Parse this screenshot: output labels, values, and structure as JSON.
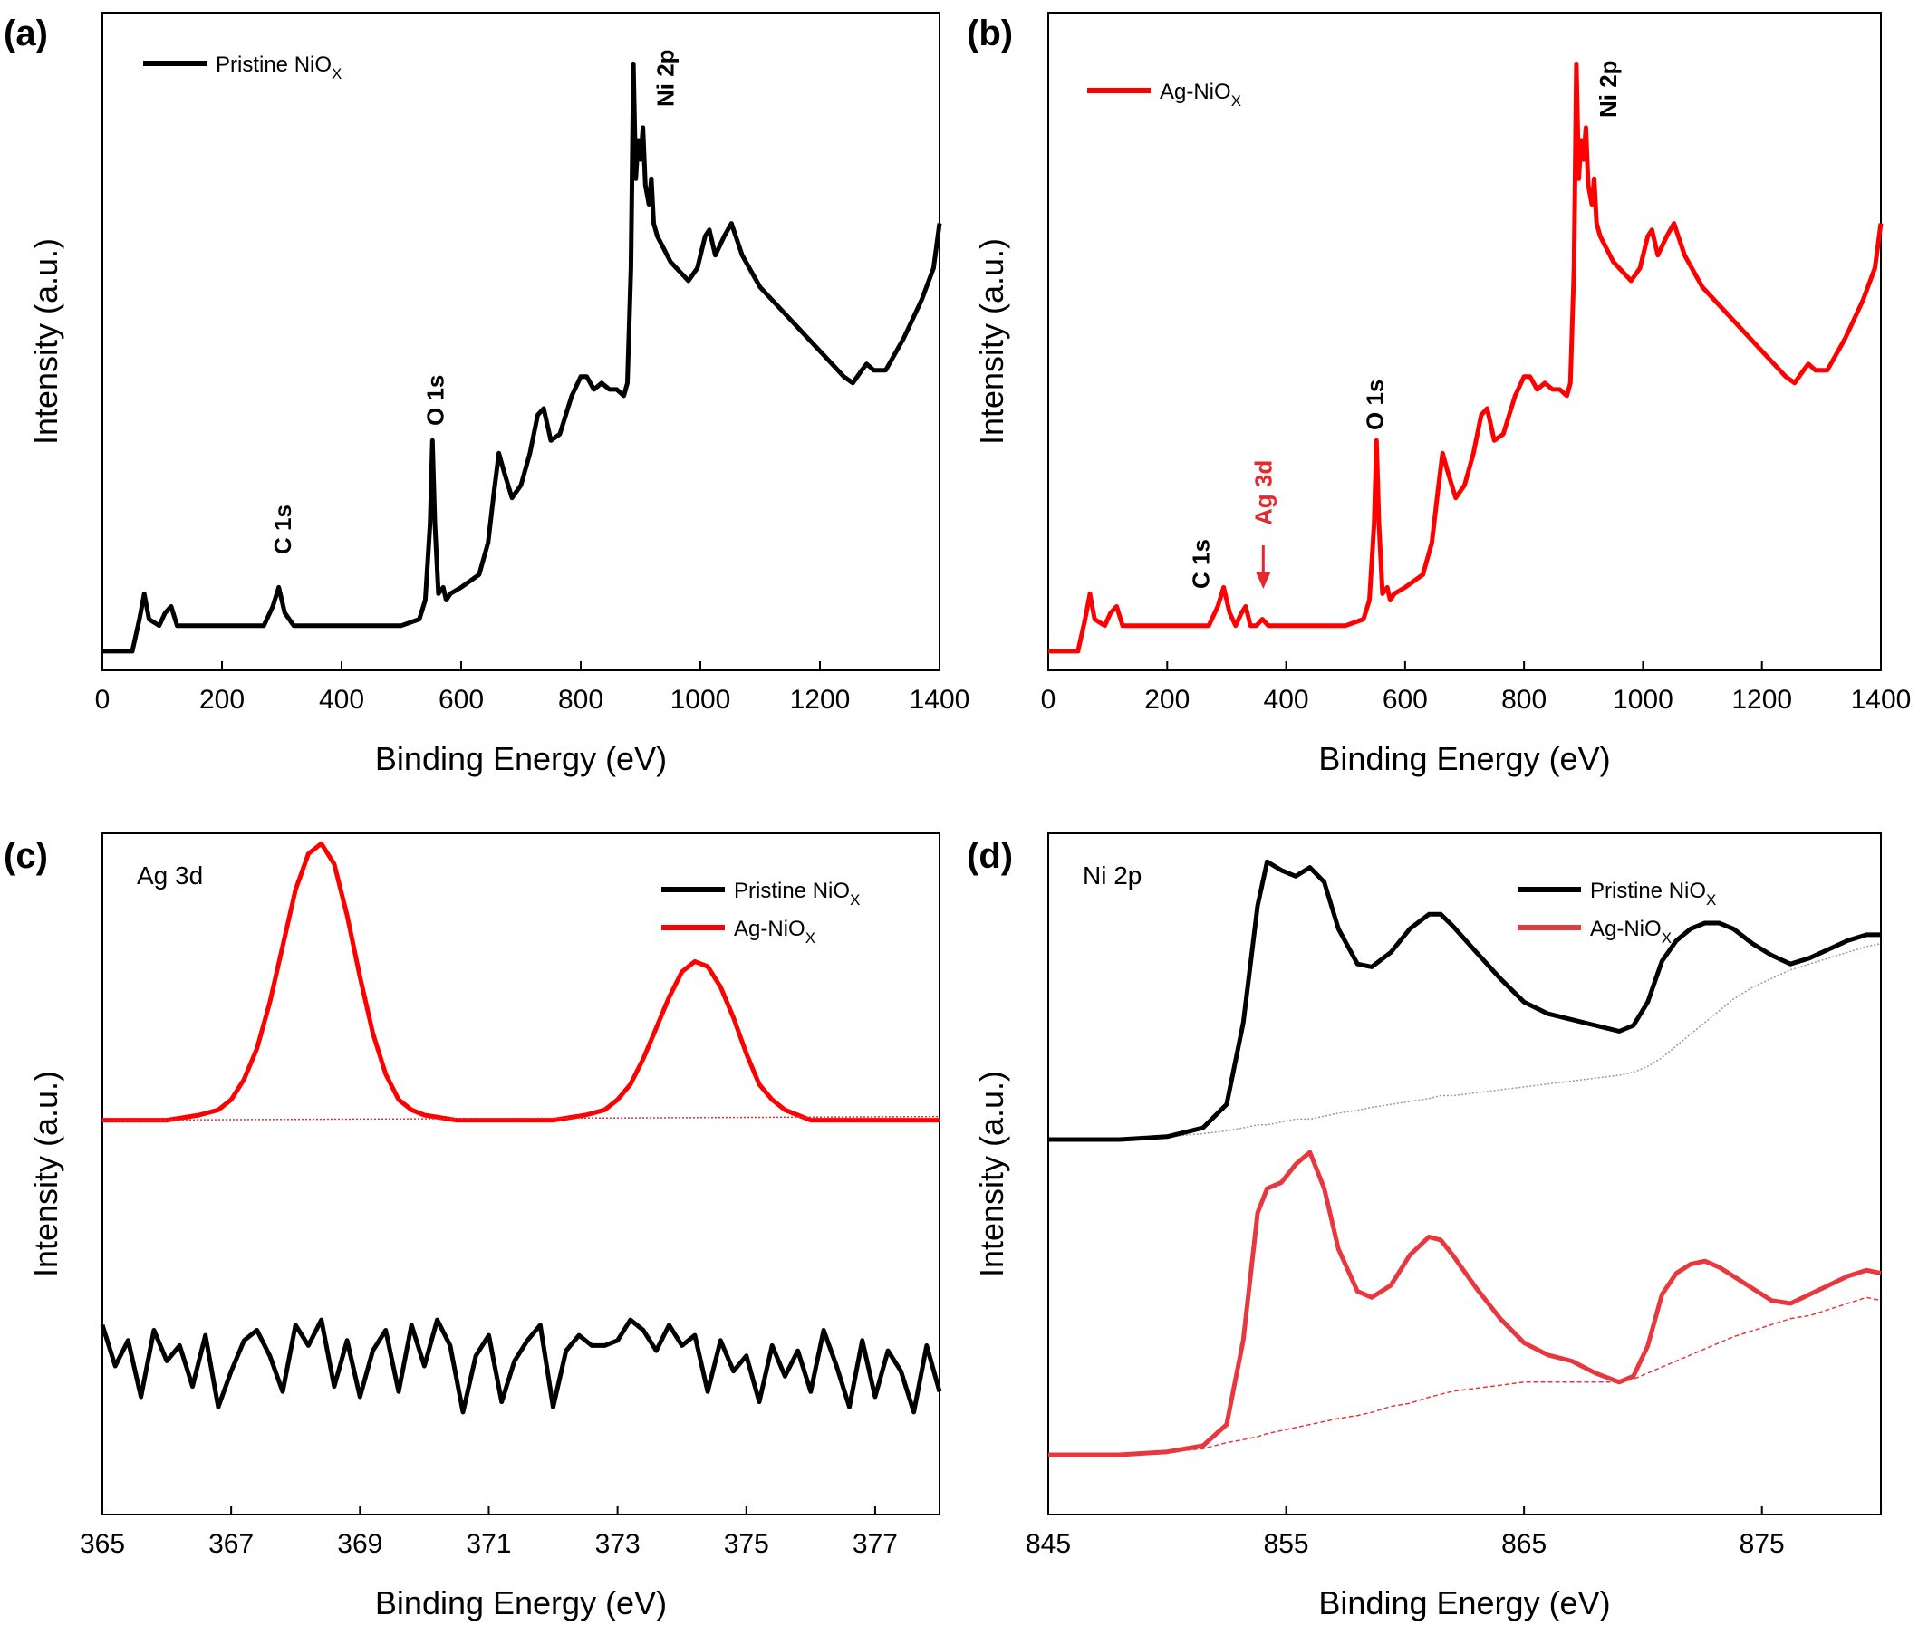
{
  "chart_data": [
    {
      "panel": "(a)",
      "type": "line",
      "xlabel": "Binding Energy (eV)",
      "ylabel": "Intensity (a.u.)",
      "xlim": [
        0,
        1400
      ],
      "xticks": [
        0,
        200,
        400,
        600,
        800,
        1000,
        1200,
        1400
      ],
      "legend": "top-left",
      "grid": false,
      "series": [
        {
          "name": "Pristine NiO",
          "name_subscript": "X",
          "color": "#000000",
          "x": [
            0,
            50,
            62,
            70,
            78,
            95,
            105,
            115,
            125,
            140,
            200,
            270,
            285,
            295,
            305,
            320,
            400,
            500,
            530,
            540,
            548,
            552,
            556,
            562,
            570,
            575,
            582,
            600,
            630,
            645,
            655,
            663,
            672,
            685,
            700,
            715,
            728,
            738,
            750,
            765,
            785,
            800,
            810,
            822,
            835,
            848,
            860,
            872,
            878,
            884,
            888,
            892,
            896,
            900,
            904,
            908,
            914,
            918,
            922,
            928,
            950,
            980,
            995,
            1008,
            1015,
            1025,
            1040,
            1052,
            1070,
            1100,
            1150,
            1200,
            1240,
            1255,
            1270,
            1278,
            1290,
            1310,
            1340,
            1370,
            1390,
            1400
          ],
          "y": [
            0.0,
            0.0,
            0.05,
            0.09,
            0.05,
            0.04,
            0.06,
            0.07,
            0.04,
            0.04,
            0.04,
            0.04,
            0.07,
            0.1,
            0.06,
            0.04,
            0.04,
            0.04,
            0.05,
            0.08,
            0.2,
            0.33,
            0.2,
            0.09,
            0.1,
            0.08,
            0.09,
            0.1,
            0.12,
            0.17,
            0.25,
            0.31,
            0.28,
            0.24,
            0.26,
            0.31,
            0.37,
            0.38,
            0.33,
            0.34,
            0.4,
            0.43,
            0.43,
            0.41,
            0.42,
            0.41,
            0.41,
            0.4,
            0.42,
            0.6,
            0.92,
            0.74,
            0.8,
            0.77,
            0.82,
            0.73,
            0.7,
            0.74,
            0.67,
            0.65,
            0.61,
            0.58,
            0.6,
            0.65,
            0.66,
            0.62,
            0.65,
            0.67,
            0.62,
            0.57,
            0.52,
            0.47,
            0.43,
            0.42,
            0.44,
            0.45,
            0.44,
            0.44,
            0.49,
            0.55,
            0.6,
            0.67
          ]
        }
      ],
      "annotations": [
        {
          "text": "C 1s",
          "x": 300
        },
        {
          "text": "O 1s",
          "x": 555
        },
        {
          "text": "Ni 2p",
          "x": 940
        }
      ]
    },
    {
      "panel": "(b)",
      "type": "line",
      "xlabel": "Binding Energy (eV)",
      "ylabel": "Intensity (a.u.)",
      "xlim": [
        0,
        1400
      ],
      "xticks": [
        0,
        200,
        400,
        600,
        800,
        1000,
        1200,
        1400
      ],
      "legend": "top-left",
      "grid": false,
      "series": [
        {
          "name": "Ag-NiO",
          "name_subscript": "X",
          "color": "#ff0000",
          "x": [
            0,
            50,
            62,
            70,
            78,
            95,
            105,
            115,
            125,
            140,
            200,
            270,
            285,
            295,
            305,
            315,
            325,
            332,
            340,
            350,
            360,
            370,
            400,
            500,
            530,
            540,
            548,
            552,
            556,
            562,
            570,
            575,
            582,
            600,
            630,
            645,
            655,
            663,
            672,
            685,
            700,
            715,
            728,
            738,
            750,
            765,
            785,
            800,
            810,
            822,
            835,
            848,
            860,
            872,
            878,
            884,
            888,
            892,
            896,
            900,
            904,
            908,
            914,
            918,
            922,
            928,
            950,
            980,
            995,
            1008,
            1015,
            1025,
            1040,
            1052,
            1070,
            1100,
            1150,
            1200,
            1240,
            1255,
            1270,
            1278,
            1290,
            1310,
            1340,
            1370,
            1390,
            1400
          ],
          "y": [
            0.0,
            0.0,
            0.05,
            0.09,
            0.05,
            0.04,
            0.06,
            0.07,
            0.04,
            0.04,
            0.04,
            0.04,
            0.07,
            0.1,
            0.06,
            0.04,
            0.06,
            0.07,
            0.04,
            0.04,
            0.05,
            0.04,
            0.04,
            0.04,
            0.05,
            0.08,
            0.2,
            0.33,
            0.2,
            0.09,
            0.1,
            0.08,
            0.09,
            0.1,
            0.12,
            0.17,
            0.25,
            0.31,
            0.28,
            0.24,
            0.26,
            0.31,
            0.37,
            0.38,
            0.33,
            0.34,
            0.4,
            0.43,
            0.43,
            0.41,
            0.42,
            0.41,
            0.41,
            0.4,
            0.42,
            0.6,
            0.92,
            0.74,
            0.8,
            0.77,
            0.82,
            0.73,
            0.7,
            0.74,
            0.67,
            0.65,
            0.61,
            0.58,
            0.6,
            0.65,
            0.66,
            0.62,
            0.65,
            0.67,
            0.62,
            0.57,
            0.52,
            0.47,
            0.43,
            0.42,
            0.44,
            0.45,
            0.44,
            0.44,
            0.49,
            0.55,
            0.6,
            0.67
          ]
        }
      ],
      "annotations": [
        {
          "text": "C 1s",
          "x": 255
        },
        {
          "text": "Ag 3d",
          "x": 360,
          "color": "#e8262b"
        },
        {
          "text": "O 1s",
          "x": 555
        },
        {
          "text": "Ni 2p",
          "x": 940
        }
      ]
    },
    {
      "panel": "(c)",
      "type": "line",
      "title": "Ag 3d",
      "xlabel": "Binding Energy (eV)",
      "ylabel": "Intensity (a.u.)",
      "xlim": [
        365,
        378
      ],
      "xticks": [
        365,
        367,
        369,
        371,
        373,
        375,
        377
      ],
      "legend": "top-right",
      "grid": false,
      "series": [
        {
          "name": "Pristine NiO",
          "name_subscript": "X",
          "color": "#000000",
          "x": [
            365.0,
            365.2,
            365.4,
            365.6,
            365.8,
            366.0,
            366.2,
            366.4,
            366.6,
            366.8,
            367.0,
            367.2,
            367.4,
            367.6,
            367.8,
            368.0,
            368.2,
            368.4,
            368.6,
            368.8,
            369.0,
            369.2,
            369.4,
            369.6,
            369.8,
            370.0,
            370.2,
            370.4,
            370.6,
            370.8,
            371.0,
            371.2,
            371.4,
            371.6,
            371.8,
            372.0,
            372.2,
            372.4,
            372.6,
            372.8,
            373.0,
            373.2,
            373.4,
            373.6,
            373.8,
            374.0,
            374.2,
            374.4,
            374.6,
            374.8,
            375.0,
            375.2,
            375.4,
            375.6,
            375.8,
            376.0,
            376.2,
            376.4,
            376.6,
            376.8,
            377.0,
            377.2,
            377.4,
            377.6,
            377.8,
            378.0
          ],
          "y": [
            0.1,
            0.02,
            0.07,
            -0.04,
            0.09,
            0.03,
            0.06,
            -0.02,
            0.08,
            -0.06,
            0.01,
            0.07,
            0.09,
            0.04,
            -0.03,
            0.1,
            0.06,
            0.11,
            -0.02,
            0.07,
            -0.04,
            0.05,
            0.09,
            -0.03,
            0.1,
            0.02,
            0.11,
            0.06,
            -0.07,
            0.04,
            0.08,
            -0.05,
            0.03,
            0.07,
            0.1,
            -0.06,
            0.05,
            0.08,
            0.06,
            0.06,
            0.07,
            0.11,
            0.09,
            0.05,
            0.1,
            0.06,
            0.08,
            -0.03,
            0.07,
            0.01,
            0.04,
            -0.05,
            0.06,
            0.0,
            0.05,
            -0.03,
            0.09,
            0.02,
            -0.06,
            0.07,
            -0.04,
            0.05,
            0.01,
            -0.07,
            0.06,
            -0.03
          ]
        },
        {
          "name": "Ag-NiO",
          "name_subscript": "X",
          "color": "#ff0000",
          "x": [
            365.0,
            365.5,
            366.0,
            366.5,
            366.8,
            367.0,
            367.2,
            367.4,
            367.6,
            367.8,
            368.0,
            368.2,
            368.4,
            368.6,
            368.8,
            369.0,
            369.2,
            369.4,
            369.6,
            369.8,
            370.0,
            370.5,
            371.0,
            371.5,
            372.0,
            372.5,
            372.8,
            373.0,
            373.2,
            373.4,
            373.6,
            373.8,
            374.0,
            374.2,
            374.4,
            374.6,
            374.8,
            375.0,
            375.2,
            375.4,
            375.6,
            375.8,
            376.0,
            376.5,
            377.0,
            377.5,
            378.0
          ],
          "y": [
            0.5,
            0.5,
            0.5,
            0.51,
            0.52,
            0.54,
            0.58,
            0.64,
            0.73,
            0.84,
            0.95,
            1.02,
            1.04,
            1.0,
            0.9,
            0.78,
            0.67,
            0.59,
            0.54,
            0.52,
            0.51,
            0.5,
            0.5,
            0.5,
            0.5,
            0.51,
            0.52,
            0.54,
            0.57,
            0.62,
            0.68,
            0.74,
            0.79,
            0.81,
            0.8,
            0.76,
            0.7,
            0.63,
            0.57,
            0.54,
            0.52,
            0.51,
            0.5,
            0.5,
            0.5,
            0.5,
            0.5
          ]
        }
      ]
    },
    {
      "panel": "(d)",
      "type": "line",
      "title": "Ni 2p",
      "xlabel": "Binding Energy (eV)",
      "ylabel": "Intensity (a.u.)",
      "xlim": [
        845,
        880
      ],
      "xticks": [
        845,
        855,
        865,
        875
      ],
      "legend": "top-right",
      "grid": false,
      "series": [
        {
          "name": "Pristine NiO",
          "name_subscript": "X",
          "color": "#000000",
          "x": [
            845,
            848,
            850,
            851.5,
            852.5,
            853.2,
            853.8,
            854.2,
            854.8,
            855.4,
            856.0,
            856.6,
            857.2,
            858.0,
            858.6,
            859.4,
            860.2,
            861.0,
            861.5,
            862.0,
            863.0,
            864.0,
            865.0,
            866.0,
            867.0,
            868.0,
            869.0,
            869.6,
            870.2,
            870.8,
            871.4,
            872.0,
            872.6,
            873.2,
            873.8,
            874.6,
            875.4,
            876.2,
            877.0,
            877.8,
            878.6,
            879.4,
            880.0
          ],
          "y": [
            0.0,
            0.0,
            0.01,
            0.04,
            0.12,
            0.4,
            0.8,
            0.95,
            0.92,
            0.9,
            0.93,
            0.88,
            0.72,
            0.6,
            0.59,
            0.64,
            0.72,
            0.77,
            0.77,
            0.73,
            0.64,
            0.55,
            0.47,
            0.43,
            0.41,
            0.39,
            0.37,
            0.39,
            0.47,
            0.61,
            0.68,
            0.72,
            0.74,
            0.74,
            0.72,
            0.67,
            0.63,
            0.6,
            0.62,
            0.65,
            0.68,
            0.7,
            0.7
          ],
          "background_y": [
            0.0,
            0.0,
            0.01,
            0.02,
            0.03,
            0.04,
            0.05,
            0.05,
            0.06,
            0.07,
            0.07,
            0.08,
            0.09,
            0.1,
            0.11,
            0.12,
            0.13,
            0.14,
            0.15,
            0.15,
            0.16,
            0.17,
            0.18,
            0.19,
            0.2,
            0.21,
            0.22,
            0.23,
            0.25,
            0.28,
            0.32,
            0.36,
            0.4,
            0.44,
            0.48,
            0.52,
            0.55,
            0.58,
            0.6,
            0.62,
            0.64,
            0.66,
            0.67
          ]
        },
        {
          "name": "Ag-NiO",
          "name_subscript": "X",
          "color": "#e8383f",
          "x": [
            845,
            848,
            850,
            851.5,
            852.5,
            853.2,
            853.8,
            854.2,
            854.8,
            855.4,
            856.0,
            856.6,
            857.2,
            858.0,
            858.6,
            859.4,
            860.2,
            861.0,
            861.5,
            862.0,
            863.0,
            864.0,
            865.0,
            866.0,
            867.0,
            868.0,
            869.0,
            869.6,
            870.2,
            870.8,
            871.4,
            872.0,
            872.6,
            873.2,
            873.8,
            874.6,
            875.4,
            876.2,
            877.0,
            877.8,
            878.6,
            879.4,
            880.0
          ],
          "y": [
            0.0,
            0.0,
            0.01,
            0.03,
            0.1,
            0.38,
            0.8,
            0.88,
            0.9,
            0.96,
            1.0,
            0.88,
            0.68,
            0.54,
            0.52,
            0.56,
            0.66,
            0.72,
            0.71,
            0.66,
            0.55,
            0.45,
            0.37,
            0.33,
            0.31,
            0.27,
            0.24,
            0.26,
            0.36,
            0.53,
            0.6,
            0.63,
            0.64,
            0.62,
            0.59,
            0.55,
            0.51,
            0.5,
            0.53,
            0.56,
            0.59,
            0.61,
            0.6
          ],
          "background_y": [
            0.0,
            0.0,
            0.01,
            0.02,
            0.04,
            0.05,
            0.06,
            0.07,
            0.08,
            0.09,
            0.1,
            0.11,
            0.12,
            0.13,
            0.14,
            0.16,
            0.17,
            0.19,
            0.2,
            0.21,
            0.22,
            0.23,
            0.24,
            0.24,
            0.24,
            0.24,
            0.24,
            0.25,
            0.27,
            0.29,
            0.31,
            0.33,
            0.35,
            0.37,
            0.39,
            0.41,
            0.43,
            0.45,
            0.46,
            0.48,
            0.5,
            0.52,
            0.51
          ]
        }
      ]
    }
  ]
}
